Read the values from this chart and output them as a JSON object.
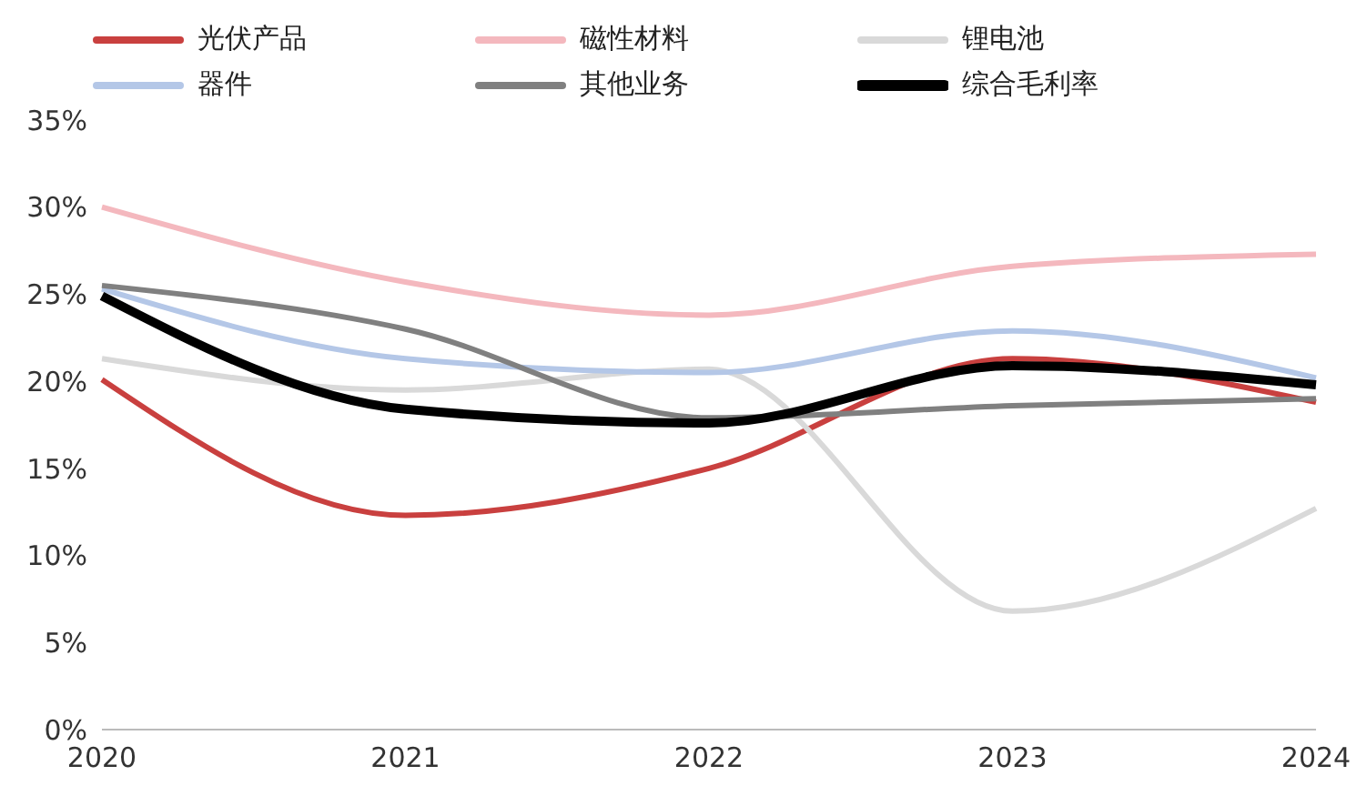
{
  "chart_data": {
    "type": "line",
    "categories": [
      "2020",
      "2021",
      "2022",
      "2023",
      "2024"
    ],
    "series": [
      {
        "name": "光伏产品",
        "color": "#c9403f",
        "values": [
          20.1,
          12.3,
          15.0,
          21.3,
          18.8
        ]
      },
      {
        "name": "磁性材料",
        "color": "#f4b8be",
        "values": [
          30.0,
          25.7,
          23.8,
          26.6,
          27.3
        ]
      },
      {
        "name": "锂电池",
        "color": "#d9d9d9",
        "values": [
          21.3,
          19.5,
          20.7,
          6.8,
          12.7
        ]
      },
      {
        "name": "器件",
        "color": "#b4c7e7",
        "values": [
          25.3,
          21.3,
          20.5,
          22.9,
          20.2
        ]
      },
      {
        "name": "其他业务",
        "color": "#808080",
        "values": [
          25.5,
          23.0,
          17.9,
          18.6,
          19.0
        ]
      },
      {
        "name": "综合毛利率",
        "color": "#000000",
        "values": [
          24.9,
          18.4,
          17.6,
          20.9,
          19.8
        ]
      }
    ],
    "ylim": [
      0,
      35
    ],
    "yticks": [
      {
        "value": 0,
        "label": "0%"
      },
      {
        "value": 5,
        "label": "5%"
      },
      {
        "value": 10,
        "label": "10%"
      },
      {
        "value": 15,
        "label": "15%"
      },
      {
        "value": 20,
        "label": "20%"
      },
      {
        "value": 25,
        "label": "25%"
      },
      {
        "value": 30,
        "label": "30%"
      },
      {
        "value": 35,
        "label": "35%"
      }
    ],
    "legend": "top",
    "marker": "none",
    "line_style": "solid"
  }
}
